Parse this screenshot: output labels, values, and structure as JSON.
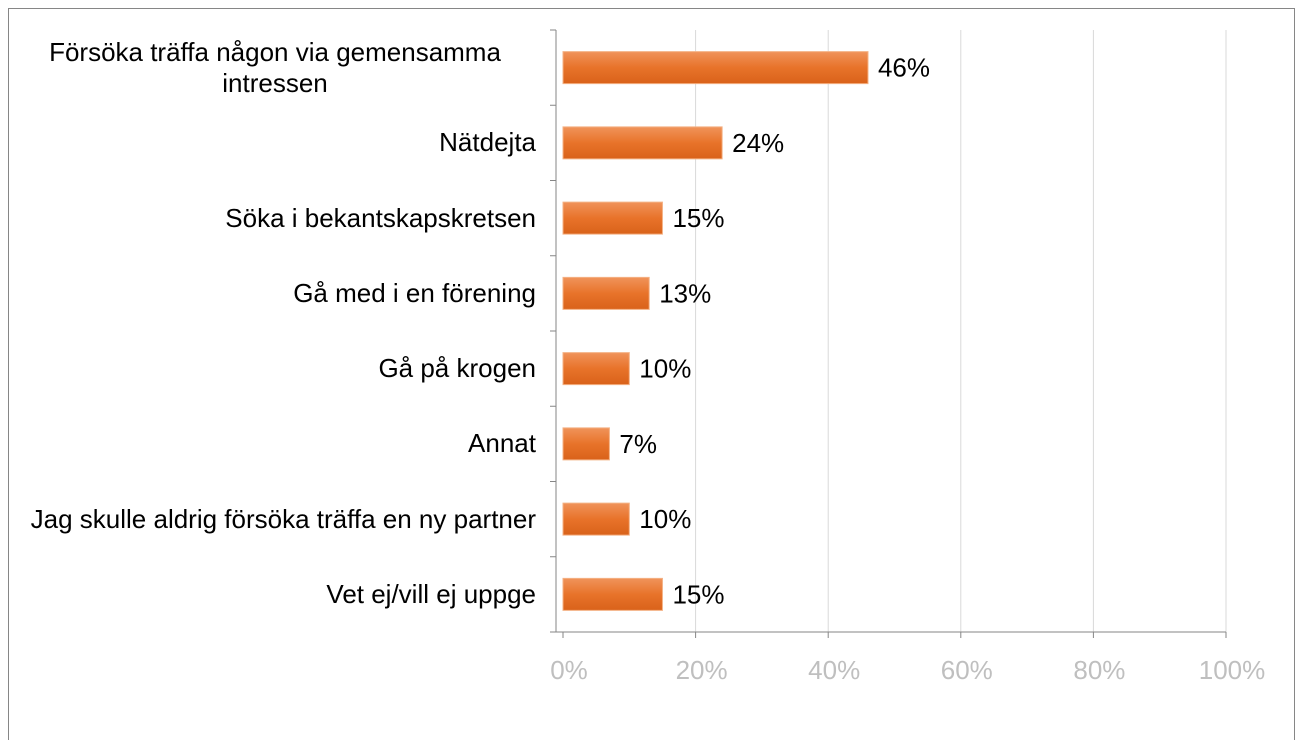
{
  "chart_data": {
    "type": "barh",
    "categories": [
      "Försöka träffa någon via gemensamma intressen",
      "Nätdejta",
      "Söka i bekantskapskretsen",
      "Gå med i en förening",
      "Gå på krogen",
      "Annat",
      "Jag skulle aldrig försöka träffa en ny partner",
      "Vet ej/vill ej uppge"
    ],
    "values": [
      46,
      24,
      15,
      13,
      10,
      7,
      10,
      15
    ],
    "value_labels": [
      "46%",
      "24%",
      "15%",
      "13%",
      "10%",
      "7%",
      "10%",
      "15%"
    ],
    "color": "#e8732a",
    "xlim": [
      0,
      100
    ],
    "xticks": [
      {
        "value": 0,
        "label": "0%"
      },
      {
        "value": 20,
        "label": "20%"
      },
      {
        "value": 40,
        "label": "40%"
      },
      {
        "value": 60,
        "label": "60%"
      },
      {
        "value": 80,
        "label": "80%"
      },
      {
        "value": 100,
        "label": "100%"
      }
    ],
    "grid": true
  }
}
